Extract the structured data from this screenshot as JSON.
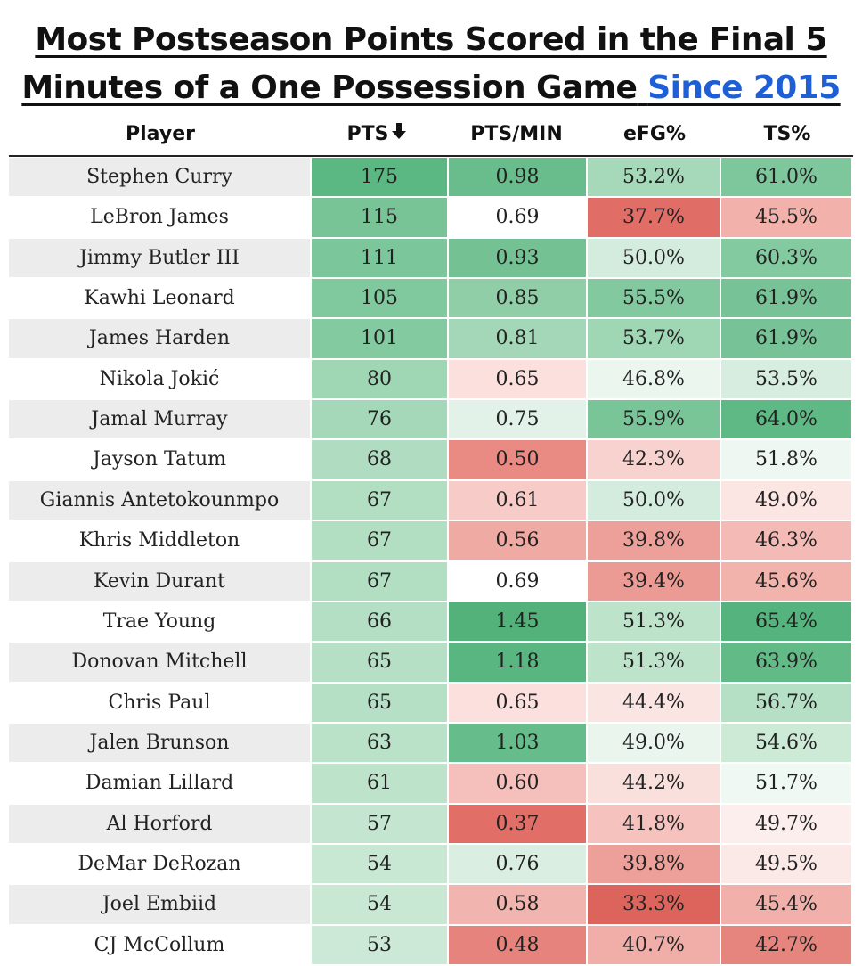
{
  "title": {
    "line1": "Most Postseason Points Scored in the Final 5",
    "line2": "Minutes of a One Possession Game",
    "line2_accent": "Since 2015",
    "accent_color": "#1f5fd6"
  },
  "chart_data": {
    "type": "table",
    "title": "Most Postseason Points Scored in the Final 5 Minutes of a One Possession Game Since 2015",
    "sort_column": "PTS",
    "sort_direction": "descending",
    "sort_icon": "arrow-down-icon",
    "columns": [
      {
        "key": "player",
        "label": "Player"
      },
      {
        "key": "pts",
        "label": "PTS",
        "sorted": true
      },
      {
        "key": "pts_min",
        "label": "PTS/MIN"
      },
      {
        "key": "efg",
        "label": "eFG%"
      },
      {
        "key": "ts",
        "label": "TS%"
      }
    ],
    "rows": [
      {
        "player": "Stephen Curry",
        "pts": 175,
        "pts_min": "0.98",
        "efg": "53.2%",
        "ts": "61.0%"
      },
      {
        "player": "LeBron James",
        "pts": 115,
        "pts_min": "0.69",
        "efg": "37.7%",
        "ts": "45.5%"
      },
      {
        "player": "Jimmy Butler III",
        "pts": 111,
        "pts_min": "0.93",
        "efg": "50.0%",
        "ts": "60.3%"
      },
      {
        "player": "Kawhi Leonard",
        "pts": 105,
        "pts_min": "0.85",
        "efg": "55.5%",
        "ts": "61.9%"
      },
      {
        "player": "James Harden",
        "pts": 101,
        "pts_min": "0.81",
        "efg": "53.7%",
        "ts": "61.9%"
      },
      {
        "player": "Nikola Jokić",
        "pts": 80,
        "pts_min": "0.65",
        "efg": "46.8%",
        "ts": "53.5%"
      },
      {
        "player": "Jamal Murray",
        "pts": 76,
        "pts_min": "0.75",
        "efg": "55.9%",
        "ts": "64.0%"
      },
      {
        "player": "Jayson Tatum",
        "pts": 68,
        "pts_min": "0.50",
        "efg": "42.3%",
        "ts": "51.8%"
      },
      {
        "player": "Giannis Antetokounmpo",
        "pts": 67,
        "pts_min": "0.61",
        "efg": "50.0%",
        "ts": "49.0%"
      },
      {
        "player": "Khris Middleton",
        "pts": 67,
        "pts_min": "0.56",
        "efg": "39.8%",
        "ts": "46.3%"
      },
      {
        "player": "Kevin Durant",
        "pts": 67,
        "pts_min": "0.69",
        "efg": "39.4%",
        "ts": "45.6%"
      },
      {
        "player": "Trae Young",
        "pts": 66,
        "pts_min": "1.45",
        "efg": "51.3%",
        "ts": "65.4%"
      },
      {
        "player": "Donovan Mitchell",
        "pts": 65,
        "pts_min": "1.18",
        "efg": "51.3%",
        "ts": "63.9%"
      },
      {
        "player": "Chris Paul",
        "pts": 65,
        "pts_min": "0.65",
        "efg": "44.4%",
        "ts": "56.7%"
      },
      {
        "player": "Jalen Brunson",
        "pts": 63,
        "pts_min": "1.03",
        "efg": "49.0%",
        "ts": "54.6%"
      },
      {
        "player": "Damian Lillard",
        "pts": 61,
        "pts_min": "0.60",
        "efg": "44.2%",
        "ts": "51.7%"
      },
      {
        "player": "Al Horford",
        "pts": 57,
        "pts_min": "0.37",
        "efg": "41.8%",
        "ts": "49.7%"
      },
      {
        "player": "DeMar DeRozan",
        "pts": 54,
        "pts_min": "0.76",
        "efg": "39.8%",
        "ts": "49.5%"
      },
      {
        "player": "Joel Embiid",
        "pts": 54,
        "pts_min": "0.58",
        "efg": "33.3%",
        "ts": "45.4%"
      },
      {
        "player": "CJ McCollum",
        "pts": 53,
        "pts_min": "0.48",
        "efg": "40.7%",
        "ts": "42.7%"
      }
    ],
    "cell_colors": {
      "pts": [
        "#5cb882",
        "#78c497",
        "#7bc69a",
        "#80c89d",
        "#84caa0",
        "#9fd6b4",
        "#a4d8b8",
        "#b0ddc1",
        "#b2dec2",
        "#b2dec2",
        "#b2dec2",
        "#b4dfc4",
        "#b6e0c5",
        "#b6e0c5",
        "#b9e2c8",
        "#bde3cb",
        "#c4e6d0",
        "#c9e8d4",
        "#c9e8d4",
        "#cbe9d6"
      ],
      "pts_min": [
        "#69bd8c",
        "#ffffff",
        "#74c294",
        "#8fcea7",
        "#a3d7b7",
        "#fbe0de",
        "#e2f2e8",
        "#e98a83",
        "#f7cbc7",
        "#f0aaa4",
        "#ffffff",
        "#52b27a",
        "#5ab681",
        "#fbe0de",
        "#66bc8a",
        "#f5c0bb",
        "#e16f68",
        "#daefe2",
        "#f2b4ae",
        "#e6837c"
      ],
      "efg": [
        "#a6d9b9",
        "#e06e67",
        "#d4ecde",
        "#83c9a0",
        "#9fd6b4",
        "#ebf6ef",
        "#79c598",
        "#f8d2ce",
        "#d4ecde",
        "#ed9f99",
        "#ec9a94",
        "#bde3cb",
        "#bde3cb",
        "#fbe5e3",
        "#e9f5ed",
        "#fae0dd",
        "#f5c2bd",
        "#ed9f99",
        "#dc645d",
        "#f1ada7"
      ],
      "ts": [
        "#7ec79c",
        "#f2b1ab",
        "#84caa0",
        "#77c397",
        "#77c397",
        "#d6eddf",
        "#5fb985",
        "#eef7f1",
        "#fbe6e4",
        "#f4bbb6",
        "#f2b3ad",
        "#55b47d",
        "#62ba87",
        "#b6e0c5",
        "#cdeAd7",
        "#f0f8f3",
        "#fceeec",
        "#fbe9e7",
        "#f1b0aa",
        "#e6857e"
      ]
    }
  }
}
